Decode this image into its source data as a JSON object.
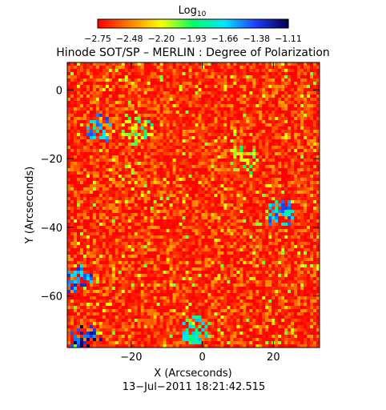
{
  "chart_data": {
    "type": "heatmap",
    "title": "Hinode SOT/SP – MERLIN : Degree of Polarization",
    "xlabel": "X (Arcseconds)",
    "ylabel": "Y (Arcseconds)",
    "xlim": [
      -38,
      33
    ],
    "ylim": [
      -75,
      8
    ],
    "x_ticks": [
      -20,
      0,
      20
    ],
    "y_ticks": [
      0,
      -20,
      -40,
      -60
    ],
    "x_tick_labels": [
      "−20",
      "0",
      "20"
    ],
    "y_tick_labels": [
      "0",
      "−20",
      "−40",
      "−60"
    ],
    "colorbar": {
      "label_base": "Log",
      "label_sub": "10",
      "range": [
        -2.75,
        -1.11
      ],
      "tick_labels": [
        "−2.75",
        "−2.48",
        "−2.20",
        "−1.93",
        "−1.66",
        "−1.38",
        "−1.11"
      ],
      "colors": [
        "#ff0000",
        "#ff7f00",
        "#ffff00",
        "#00ff60",
        "#00e6ff",
        "#1e3cff",
        "#000050"
      ]
    },
    "timestamp": "13−Jul−2011  18:21:42.515",
    "dominant_value_range": [
      -2.75,
      -2.4
    ],
    "strong_polarization_regions": [
      {
        "x": -35,
        "y": -55,
        "level": -1.5
      },
      {
        "x": -33,
        "y": -73,
        "level": -1.3
      },
      {
        "x": 22,
        "y": -36,
        "level": -1.6
      },
      {
        "x": -2,
        "y": -70,
        "level": -1.8
      },
      {
        "x": -18,
        "y": -12,
        "level": -2.0
      },
      {
        "x": 12,
        "y": -20,
        "level": -2.1
      },
      {
        "x": -29,
        "y": -11,
        "level": -1.6
      }
    ]
  }
}
